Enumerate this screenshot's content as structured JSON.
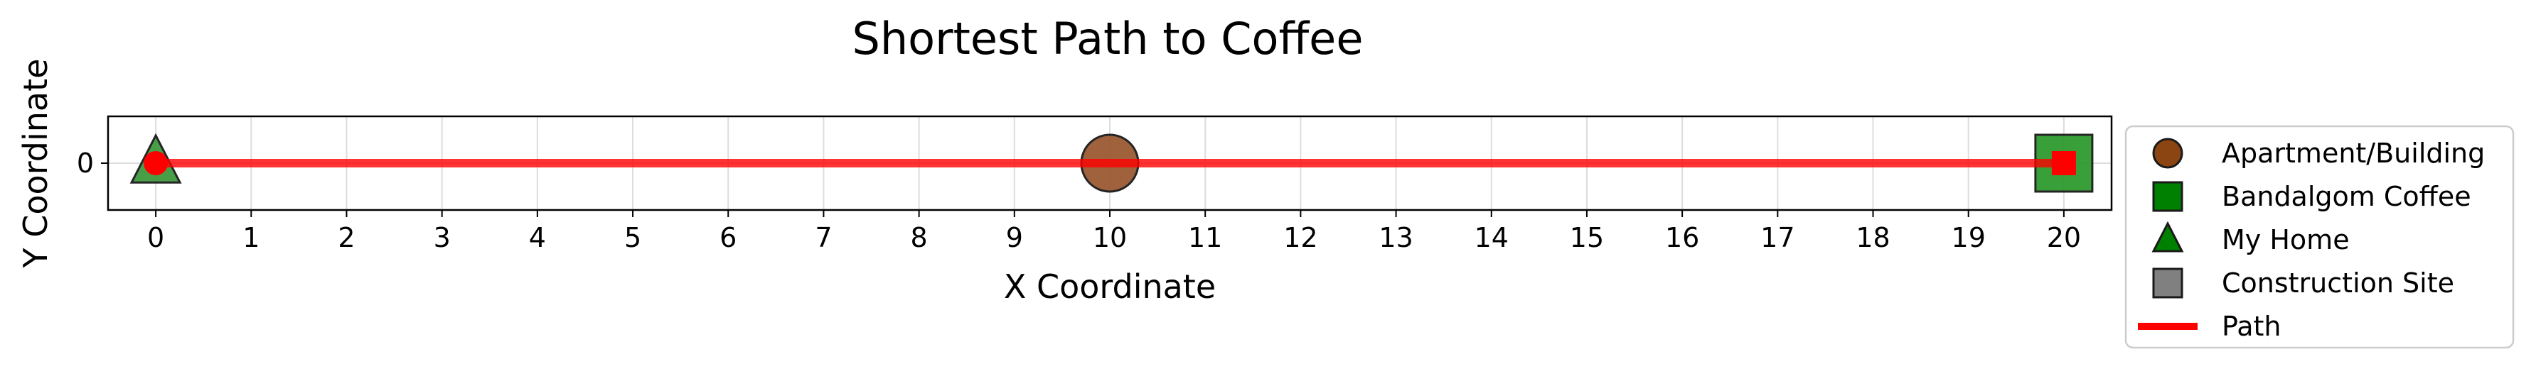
{
  "chart_data": {
    "type": "scatter",
    "title": "Shortest Path to Coffee",
    "xlabel": "X Coordinate",
    "ylabel": "Y Coordinate",
    "xlim": [
      -0.5,
      20.5
    ],
    "ylim": [
      -1,
      1
    ],
    "x_ticks": [
      0,
      1,
      2,
      3,
      4,
      5,
      6,
      7,
      8,
      9,
      10,
      11,
      12,
      13,
      14,
      15,
      16,
      17,
      18,
      19,
      20
    ],
    "y_ticks": [
      0
    ],
    "grid": true,
    "legend_position": "outside-right",
    "points": [
      {
        "category": "Apartment/Building",
        "x": 10,
        "y": 0
      },
      {
        "category": "Bandalgom Coffee",
        "x": 20,
        "y": 0
      },
      {
        "category": "My Home",
        "x": 0,
        "y": 0
      }
    ],
    "path": {
      "name": "Path",
      "x": [
        0,
        20
      ],
      "y": [
        0,
        0
      ],
      "color": "#ff0000"
    },
    "legend": [
      {
        "label": "Apartment/Building",
        "marker": "circle",
        "color": "#8b4513"
      },
      {
        "label": "Bandalgom Coffee",
        "marker": "square",
        "color": "#008000"
      },
      {
        "label": "My Home",
        "marker": "triangle",
        "color": "#008000"
      },
      {
        "label": "Construction Site",
        "marker": "square",
        "color": "#808080"
      },
      {
        "label": "Path",
        "marker": "line",
        "color": "#ff0000"
      }
    ]
  }
}
